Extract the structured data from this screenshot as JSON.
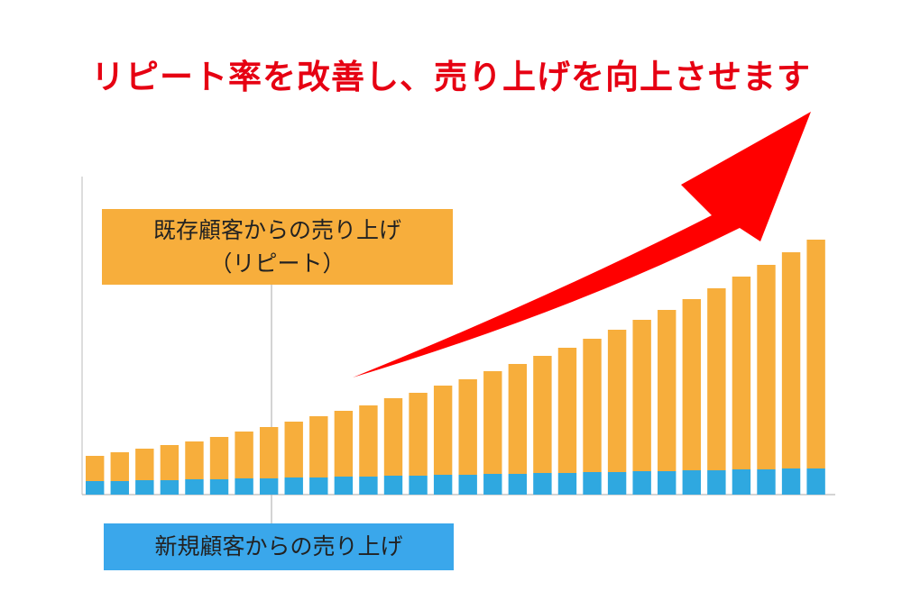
{
  "headline": {
    "text": "リピート率を改善し、売り上げを向上させます",
    "color": "#e60012"
  },
  "colors": {
    "repeat": "#f7ae3c",
    "new": "#2fa8e0",
    "repeat_callout_bg": "#f7ae3c",
    "new_callout_bg": "#3aa7eb",
    "arrow": "#ff0000",
    "axis": "#bbbbbb",
    "leader": "#aaaaaa"
  },
  "callouts": {
    "repeat_line1": "既存顧客からの売り上げ",
    "repeat_line2": "（リピート）",
    "new": "新規顧客からの売り上げ"
  },
  "chart_data": {
    "type": "bar",
    "stacked": true,
    "title": "",
    "xlabel": "",
    "ylabel": "",
    "ylim": [
      0,
      352
    ],
    "series": [
      {
        "name": "新規顧客からの売り上げ",
        "color": "#2fa8e0",
        "values": [
          15,
          15,
          16,
          16,
          17,
          17,
          18,
          18,
          19,
          19,
          20,
          20,
          21,
          21,
          22,
          22,
          23,
          23,
          24,
          24,
          25,
          25,
          26,
          26,
          27,
          27,
          28,
          28,
          29,
          29
        ]
      },
      {
        "name": "既存顧客からの売り上げ",
        "color": "#f7ae3c",
        "values": [
          28,
          32,
          35,
          39,
          42,
          47,
          52,
          57,
          62,
          68,
          73,
          79,
          86,
          92,
          99,
          106,
          114,
          122,
          130,
          139,
          148,
          158,
          168,
          179,
          190,
          202,
          214,
          227,
          240,
          254
        ]
      }
    ]
  }
}
